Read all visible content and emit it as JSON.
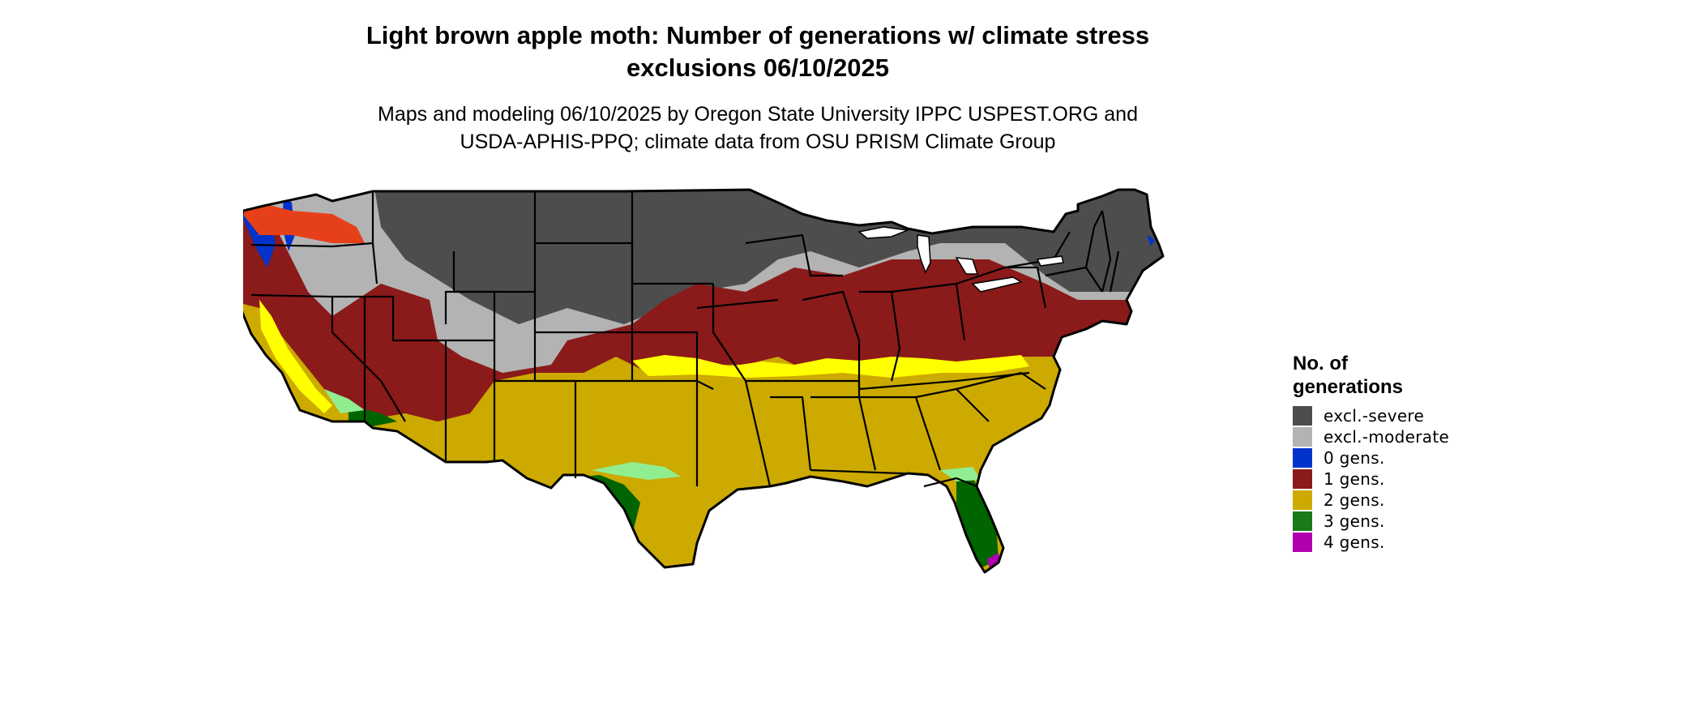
{
  "title": "Light brown apple moth: Number of generations w/ climate stress\nexclusions 06/10/2025",
  "subtitle": "Maps and modeling 06/10/2025 by Oregon State University IPPC USPEST.ORG and\nUSDA-APHIS-PPQ; climate data from OSU PRISM Climate Group",
  "legend": {
    "title": "No. of\ngenerations",
    "items": [
      {
        "label": "excl.-severe",
        "color": "#4d4d4d"
      },
      {
        "label": "excl.-moderate",
        "color": "#b3b3b3"
      },
      {
        "label": "0 gens.",
        "color": "#0033cc"
      },
      {
        "label": "1 gens.",
        "color": "#8b1a1a"
      },
      {
        "label": "2 gens.",
        "color": "#ccaa00"
      },
      {
        "label": "3 gens.",
        "color": "#1a7a1a"
      },
      {
        "label": "4 gens.",
        "color": "#b000b0"
      }
    ]
  },
  "map_colors": {
    "severe": "#4d4d4d",
    "moderate": "#b3b3b3",
    "gen0": "#0033cc",
    "gen1": "#8b1a1a",
    "gen1_alt": "#e6401a",
    "gen2": "#ccaa00",
    "gen2_light": "#ffff00",
    "gen3": "#006400",
    "gen3_light": "#90ee90",
    "gen4": "#b000b0",
    "border": "#000000"
  }
}
